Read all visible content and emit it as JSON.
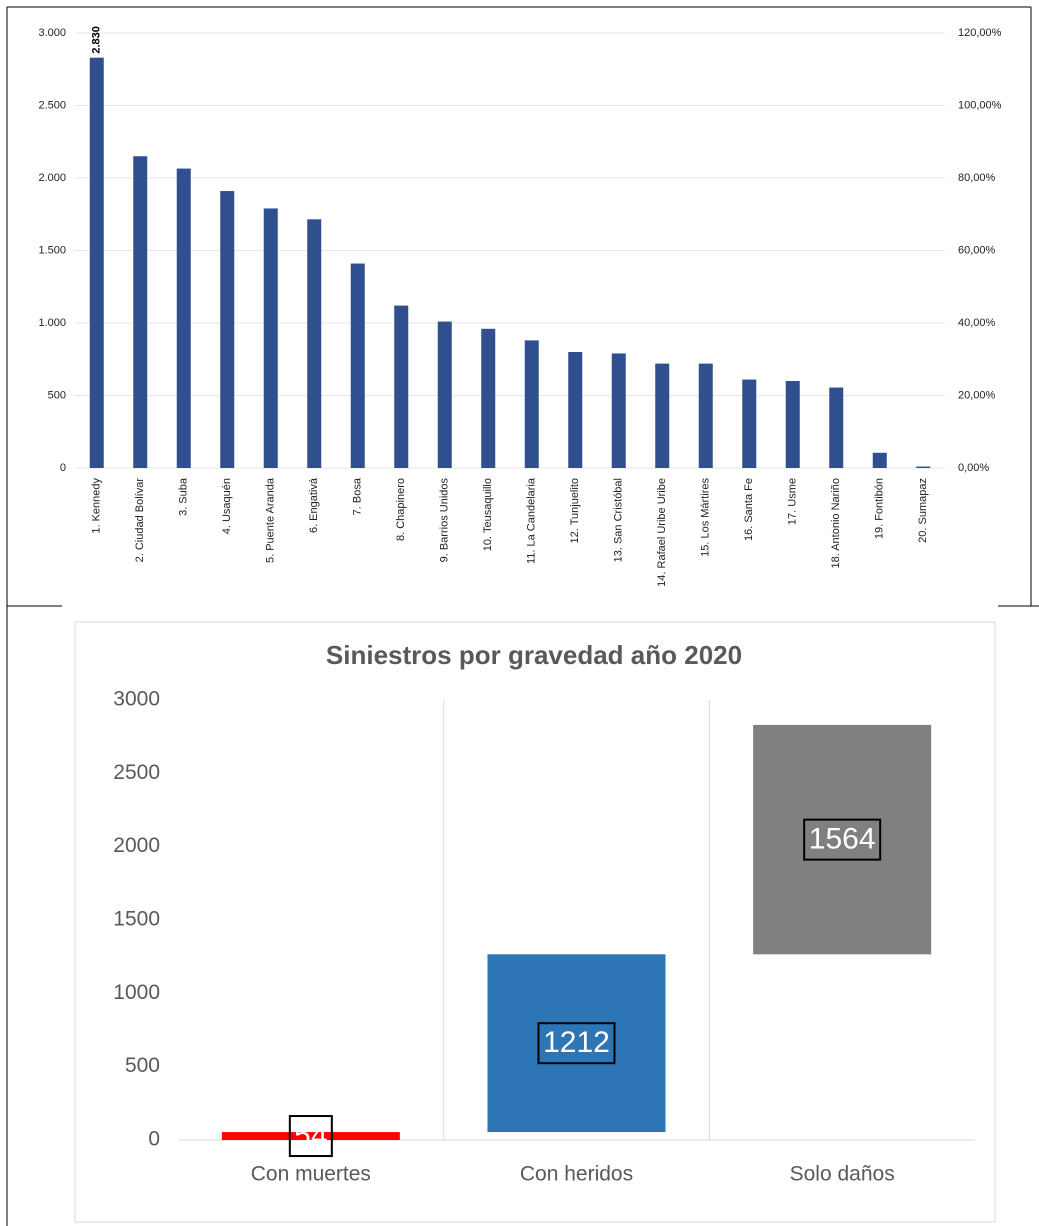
{
  "chart_data": [
    {
      "type": "bar",
      "categories": [
        "1. Kennedy",
        "2. Ciudad Bolívar",
        "3. Suba",
        "4. Usaquén",
        "5. Puente Aranda",
        "6. Engativá",
        "7. Bosa",
        "8. Chapinero",
        "9. Barrios Unidos",
        "10. Teusaquillo",
        "11. La Candelaria",
        "12. Tunjuelito",
        "13. San Cristóbal",
        "14. Rafael Uribe Uribe",
        "15. Los Mártires",
        "16. Santa Fe",
        "17. Usme",
        "18. Antonio Nariño",
        "19. Fontibón",
        "20. Sumapaz"
      ],
      "values": [
        2830,
        2150,
        2065,
        1910,
        1790,
        1715,
        1410,
        1120,
        1010,
        960,
        880,
        800,
        790,
        720,
        720,
        610,
        600,
        555,
        105,
        10
      ],
      "value_labels": [
        "2.830",
        null,
        null,
        null,
        null,
        null,
        null,
        null,
        null,
        null,
        null,
        null,
        null,
        null,
        null,
        null,
        null,
        null,
        null,
        null
      ],
      "color": "#2f4f8f",
      "ylim": [
        0,
        3000
      ],
      "yticks": [
        {
          "value": 0,
          "label": "0"
        },
        {
          "value": 500,
          "label": "500"
        },
        {
          "value": 1000,
          "label": "1.000"
        },
        {
          "value": 1500,
          "label": "1.500"
        },
        {
          "value": 2000,
          "label": "2.000"
        },
        {
          "value": 2500,
          "label": "2.500"
        },
        {
          "value": 3000,
          "label": "3.000"
        }
      ],
      "y2lim": [
        0,
        120
      ],
      "y2ticks": [
        {
          "value": 0,
          "label": "0,00%"
        },
        {
          "value": 20,
          "label": "20,00%"
        },
        {
          "value": 40,
          "label": "40,00%"
        },
        {
          "value": 60,
          "label": "60,00%"
        },
        {
          "value": 80,
          "label": "80,00%"
        },
        {
          "value": 100,
          "label": "100,00%"
        },
        {
          "value": 120,
          "label": "120,00%"
        }
      ],
      "grid": true
    },
    {
      "type": "waterfall",
      "title": "Siniestros por gravedad año 2020",
      "categories": [
        "Con muertes",
        "Con heridos",
        "Solo daños"
      ],
      "values": [
        54,
        1212,
        1564
      ],
      "colors": [
        "#ff0000",
        "#2e75b6",
        "#808080"
      ],
      "ylim": [
        0,
        3000
      ],
      "yticks": [
        0,
        500,
        1000,
        1500,
        2000,
        2500,
        3000
      ]
    }
  ]
}
